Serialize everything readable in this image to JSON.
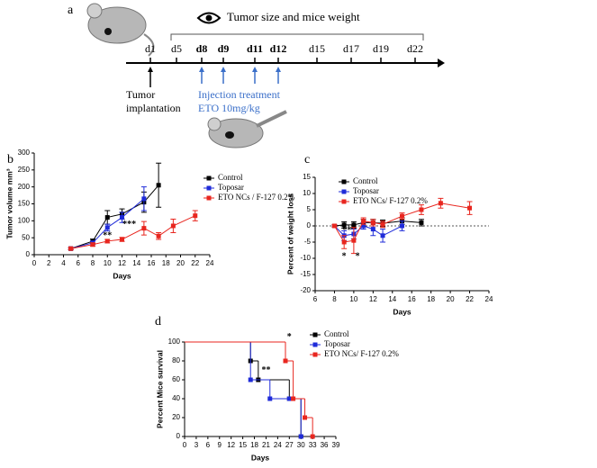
{
  "timeline": {
    "panel": "a",
    "header": "Tumor size and mice weight",
    "days": [
      {
        "label": "d1",
        "color": "#000000"
      },
      {
        "label": "d5",
        "color": "#000000"
      },
      {
        "label": "d8",
        "color": "#3a6fc9"
      },
      {
        "label": "d9",
        "color": "#3a6fc9"
      },
      {
        "label": "d11",
        "color": "#3a6fc9"
      },
      {
        "label": "d12",
        "color": "#3a6fc9"
      },
      {
        "label": "d15",
        "color": "#000000"
      },
      {
        "label": "d17",
        "color": "#000000"
      },
      {
        "label": "d19",
        "color": "#000000"
      },
      {
        "label": "d22",
        "color": "#000000"
      }
    ],
    "implant": [
      "Tumor",
      "implantation"
    ],
    "treatment": [
      "Injection treatment",
      "ETO 10mg/kg"
    ]
  },
  "chart_data": [
    {
      "type": "line",
      "panel": "b",
      "x_label": "Days",
      "y_label": "Tumor volume mm³",
      "xlim": [
        0,
        24
      ],
      "xticks": [
        0,
        2,
        4,
        6,
        8,
        10,
        12,
        14,
        16,
        18,
        20,
        22,
        24
      ],
      "ylim": [
        0,
        300
      ],
      "yticks": [
        0,
        50,
        100,
        150,
        200,
        250,
        300
      ],
      "annotations": [
        "**",
        "***"
      ],
      "series": [
        {
          "name": "Control",
          "color": "#000000",
          "x": [
            5,
            8,
            10,
            12,
            15,
            17
          ],
          "values": [
            18,
            40,
            110,
            120,
            155,
            205
          ],
          "errors": [
            3,
            6,
            20,
            15,
            30,
            65
          ]
        },
        {
          "name": "Toposar",
          "color": "#1f2bd9",
          "x": [
            5,
            8,
            10,
            12,
            15
          ],
          "values": [
            18,
            35,
            80,
            110,
            165
          ],
          "errors": [
            3,
            5,
            10,
            15,
            35
          ]
        },
        {
          "name": "ETO NCs / F-127 0.2%",
          "color": "#e8261f",
          "x": [
            5,
            8,
            10,
            12,
            15,
            17,
            19,
            22
          ],
          "values": [
            18,
            30,
            40,
            45,
            78,
            55,
            85,
            115
          ],
          "errors": [
            3,
            5,
            5,
            6,
            20,
            10,
            20,
            15
          ]
        }
      ]
    },
    {
      "type": "line",
      "panel": "c",
      "x_label": "Days",
      "y_label": "Percent of weight loss",
      "xlim": [
        6,
        24
      ],
      "xticks": [
        6,
        8,
        10,
        12,
        14,
        16,
        18,
        20,
        22,
        24
      ],
      "ylim": [
        -20,
        15
      ],
      "yticks": [
        -20,
        -15,
        -10,
        -5,
        0,
        5,
        10,
        15
      ],
      "zero_line": true,
      "annotations": [
        "**",
        "*",
        "*"
      ],
      "series": [
        {
          "name": "Control",
          "color": "#000000",
          "x": [
            8,
            9,
            10,
            11,
            12,
            13,
            15,
            17
          ],
          "values": [
            0,
            0.3,
            0.3,
            1,
            1,
            0.8,
            1.5,
            1
          ],
          "errors": [
            0.3,
            1,
            1,
            1,
            1,
            1,
            1,
            1
          ]
        },
        {
          "name": "Toposar",
          "color": "#1f2bd9",
          "x": [
            8,
            9,
            10,
            11,
            12,
            13,
            15
          ],
          "values": [
            0,
            -3,
            -2.5,
            0,
            -1,
            -3,
            0
          ],
          "errors": [
            0.3,
            1.5,
            1.5,
            1,
            2,
            2,
            1.5
          ]
        },
        {
          "name": "ETO NCs/ F-127 0.2%",
          "color": "#e8261f",
          "x": [
            8,
            9,
            10,
            11,
            12,
            13,
            15,
            17,
            19,
            22
          ],
          "values": [
            0,
            -5,
            -4.5,
            1.5,
            1,
            0.5,
            3,
            5,
            7,
            5.5
          ],
          "errors": [
            0.3,
            2,
            4,
            1,
            1,
            1,
            1,
            1.5,
            1.5,
            2
          ]
        }
      ]
    },
    {
      "type": "step",
      "panel": "d",
      "x_label": "Days",
      "y_label": "Percent Mice survival",
      "xlim": [
        0,
        39
      ],
      "xticks": [
        0,
        3,
        6,
        9,
        12,
        15,
        18,
        21,
        24,
        27,
        30,
        33,
        36,
        39
      ],
      "ylim": [
        0,
        100
      ],
      "yticks": [
        0,
        20,
        40,
        60,
        80,
        100
      ],
      "annotations": [
        "*",
        "**"
      ],
      "series": [
        {
          "name": "Control",
          "color": "#000000",
          "x": [
            0,
            17,
            19,
            27,
            30
          ],
          "values": [
            100,
            80,
            60,
            40,
            0
          ]
        },
        {
          "name": "Toposar",
          "color": "#1f2bd9",
          "x": [
            0,
            17,
            22,
            27,
            30
          ],
          "values": [
            100,
            60,
            40,
            40,
            0
          ]
        },
        {
          "name": "ETO NCs/ F-127 0.2%",
          "color": "#e8261f",
          "x": [
            0,
            26,
            28,
            31,
            33
          ],
          "values": [
            100,
            80,
            40,
            20,
            0
          ]
        }
      ]
    }
  ]
}
